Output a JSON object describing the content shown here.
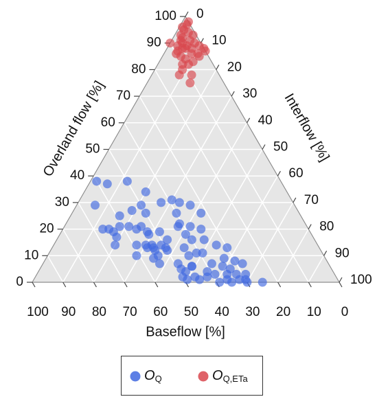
{
  "chart_data": {
    "type": "ternary",
    "lim": [
      0,
      100
    ],
    "grid": true,
    "left_axis": {
      "title": "Overland flow [%]",
      "ticks": [
        0,
        10,
        20,
        30,
        40,
        50,
        60,
        70,
        80,
        90,
        100
      ]
    },
    "right_axis": {
      "title": "Interflow [%]",
      "ticks": [
        0,
        10,
        20,
        30,
        40,
        50,
        60,
        70,
        80,
        90,
        100
      ]
    },
    "bottom_axis": {
      "title": "Baseflow [%]",
      "ticks": [
        0,
        10,
        20,
        30,
        40,
        50,
        60,
        70,
        80,
        90,
        100
      ]
    },
    "series": [
      {
        "name": "OQ",
        "color": "#4169e1",
        "overland": [
          38,
          37,
          38,
          29,
          34,
          29,
          26,
          30,
          31,
          30,
          29,
          20,
          20,
          19,
          17,
          14,
          21,
          21,
          20,
          25,
          27,
          21,
          19,
          18,
          14,
          14,
          10,
          13,
          19,
          14,
          13,
          10,
          7,
          16,
          26,
          22,
          18,
          13,
          21,
          10,
          6,
          11,
          26,
          20,
          16,
          11,
          16,
          7,
          5,
          2,
          1,
          6,
          2,
          1,
          4,
          2,
          7,
          3,
          14,
          0,
          6,
          9,
          13,
          3,
          1,
          5,
          0,
          8,
          3,
          1,
          7,
          3,
          1,
          0,
          0,
          12,
          12,
          9,
          21,
          4,
          14,
          13
        ],
        "interflow": [
          2,
          6,
          12,
          6,
          20,
          21,
          24,
          27,
          30,
          33,
          37,
          13,
          15,
          17,
          19,
          20,
          18,
          21,
          24,
          16,
          19,
          25,
          28,
          29,
          32,
          27,
          29,
          33,
          32,
          35,
          37,
          36,
          38,
          36,
          34,
          37,
          41,
          43,
          41,
          46,
          49,
          48,
          42,
          45,
          48,
          50,
          44,
          44,
          46,
          48,
          50,
          49,
          52,
          54,
          55,
          56,
          55,
          58,
          53,
          61,
          59,
          58,
          57,
          62,
          63,
          62,
          65,
          62,
          65,
          67,
          65,
          68,
          69,
          70,
          75,
          34,
          38,
          35,
          37,
          48,
          30,
          31
        ],
        "baseflow": [
          60,
          57,
          50,
          65,
          46,
          50,
          50,
          43,
          39,
          37,
          34,
          67,
          65,
          64,
          64,
          66,
          61,
          58,
          56,
          59,
          54,
          54,
          53,
          53,
          54,
          59,
          61,
          54,
          49,
          51,
          50,
          54,
          55,
          48,
          40,
          41,
          41,
          44,
          38,
          44,
          45,
          41,
          32,
          35,
          36,
          39,
          40,
          49,
          49,
          50,
          49,
          45,
          46,
          45,
          41,
          42,
          38,
          39,
          33,
          39,
          35,
          33,
          30,
          35,
          36,
          33,
          35,
          30,
          32,
          32,
          28,
          29,
          30,
          30,
          25,
          54,
          50,
          56,
          42,
          48,
          56,
          56
        ]
      },
      {
        "name": "OQ,ETa",
        "color": "#d9474d",
        "overland": [
          96,
          95,
          93,
          94,
          91,
          90,
          91,
          90,
          89,
          88,
          88,
          88,
          89,
          88,
          90,
          86,
          85,
          84,
          86,
          86,
          87,
          82,
          82,
          83,
          78,
          78,
          75,
          97,
          92,
          89,
          87,
          98,
          93,
          85,
          80
        ],
        "interflow": [
          1,
          2,
          2,
          4,
          3,
          4,
          6,
          8,
          3,
          5,
          6,
          8,
          10,
          12,
          0,
          4,
          6,
          8,
          9,
          11,
          13,
          8,
          10,
          11,
          9,
          13,
          14,
          2,
          3,
          6,
          4,
          2,
          6,
          12,
          9
        ],
        "baseflow": [
          3,
          3,
          5,
          2,
          6,
          6,
          3,
          2,
          8,
          7,
          6,
          4,
          1,
          0,
          10,
          10,
          9,
          8,
          5,
          3,
          0,
          10,
          8,
          6,
          13,
          9,
          11,
          1,
          5,
          5,
          9,
          0,
          1,
          3,
          11
        ]
      }
    ]
  }
}
